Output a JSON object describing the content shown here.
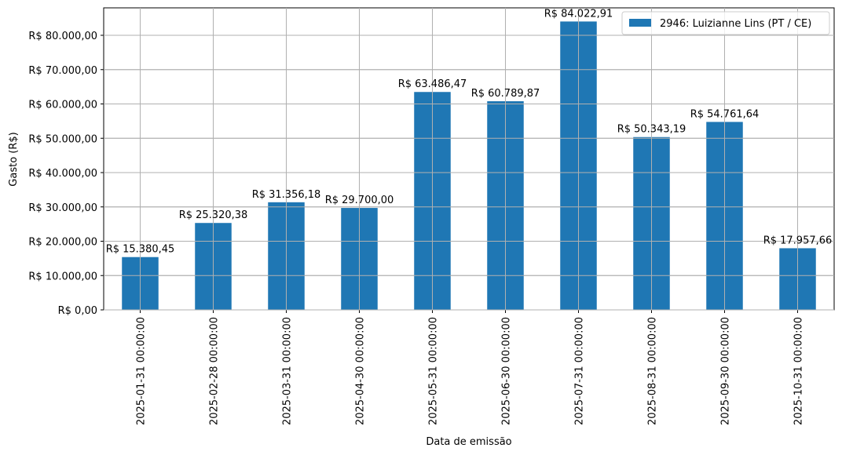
{
  "chart_data": {
    "type": "bar",
    "title": "",
    "xlabel": "Data de emissão",
    "ylabel": "Gasto (R$)",
    "ylim": [
      0,
      88000
    ],
    "grid": true,
    "legend_position": "upper right",
    "categories": [
      "2025-01-31 00:00:00",
      "2025-02-28 00:00:00",
      "2025-03-31 00:00:00",
      "2025-04-30 00:00:00",
      "2025-05-31 00:00:00",
      "2025-06-30 00:00:00",
      "2025-07-31 00:00:00",
      "2025-08-31 00:00:00",
      "2025-09-30 00:00:00",
      "2025-10-31 00:00:00"
    ],
    "series": [
      {
        "name": "2946: Luizianne Lins (PT / CE)",
        "color": "#1f77b4",
        "values": [
          15380.45,
          25320.38,
          31356.18,
          29700.0,
          63486.47,
          60789.87,
          84022.91,
          50343.19,
          54761.64,
          17957.66
        ],
        "labels": [
          "R$ 15.380,45",
          "R$ 25.320,38",
          "R$ 31.356,18",
          "R$ 29.700,00",
          "R$ 63.486,47",
          "R$ 60.789,87",
          "R$ 84.022,91",
          "R$ 50.343,19",
          "R$ 54.761,64",
          "R$ 17.957,66"
        ]
      }
    ],
    "yticks": [
      0,
      10000,
      20000,
      30000,
      40000,
      50000,
      60000,
      70000,
      80000
    ],
    "ytick_labels": [
      "R$ 0,00",
      "R$ 10.000,00",
      "R$ 20.000,00",
      "R$ 30.000,00",
      "R$ 40.000,00",
      "R$ 50.000,00",
      "R$ 60.000,00",
      "R$ 70.000,00",
      "R$ 80.000,00"
    ]
  }
}
